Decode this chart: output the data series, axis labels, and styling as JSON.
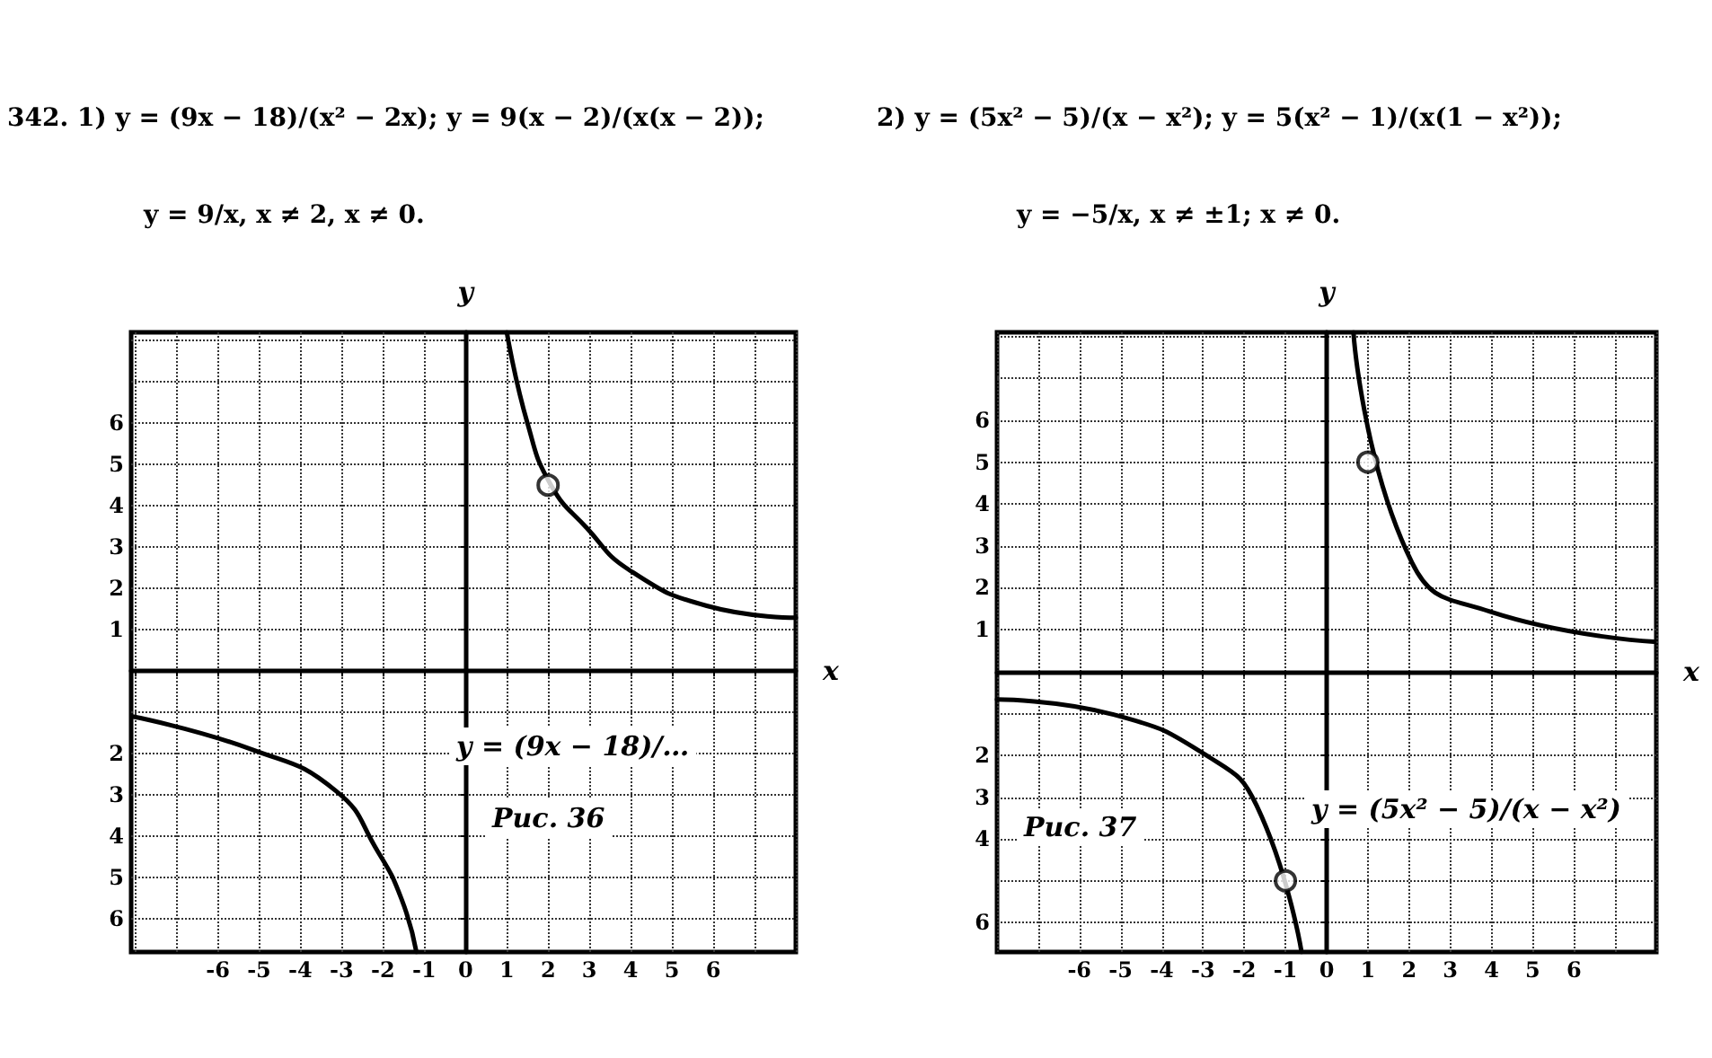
{
  "chart_data": [
    {
      "type": "line",
      "title": "342. 1) y = (9x − 18)/(x² − 2x);  y = 9(x − 2)/(x(x − 2));",
      "subtitle": "y = 9/x,  x ≠ 2, x ≠ 0.",
      "xlabel": "x",
      "ylabel": "y",
      "annotations": [
        "y = (9x − 18)/…",
        "Рис. 36"
      ],
      "xlim": [
        -8.1,
        8
      ],
      "ylim": [
        -6.8,
        8.2
      ],
      "xticks": [
        {
          "value": -8,
          "label": null
        },
        {
          "value": -7,
          "label": null
        },
        -6,
        -5,
        -4,
        -3,
        -2,
        -1,
        0,
        1,
        2,
        3,
        4,
        5,
        6,
        {
          "value": 7,
          "label": null
        },
        {
          "value": 8,
          "label": null
        }
      ],
      "yticks": [
        {
          "value": -6,
          "label": "6"
        },
        {
          "value": -5,
          "label": "5"
        },
        {
          "value": -4,
          "label": "4"
        },
        {
          "value": -3,
          "label": "3"
        },
        {
          "value": -2,
          "label": "2"
        },
        {
          "value": -1,
          "label": null
        },
        {
          "value": 0,
          "label": null
        },
        1,
        2,
        3,
        4,
        5,
        6,
        {
          "value": 7,
          "label": null
        },
        {
          "value": 8,
          "label": null
        }
      ],
      "grid": true,
      "line_style": "solid",
      "series": [
        {
          "color": "#000000",
          "marker": "none",
          "x": [
            1.0,
            1.5,
            2.07,
            2.94,
            3.96,
            5.84,
            8.0
          ],
          "values": [
            8.2,
            6.0,
            4.5,
            3.46,
            2.45,
            1.58,
            1.29
          ]
        },
        {
          "color": "#000000",
          "marker": "none",
          "x": [
            -8.07,
            -5.17,
            -3.14,
            -2.13,
            -1.55,
            -1.19
          ],
          "values": [
            -1.1,
            -1.9,
            -2.9,
            -4.36,
            -5.52,
            -6.8
          ]
        },
        {
          "type": "scatter",
          "color": "#ffffff",
          "marker": "circle",
          "x": [
            2
          ],
          "values": [
            4.5
          ]
        }
      ]
    },
    {
      "type": "line",
      "title": "2) y = (5x² − 5)/(x − x²);  y = 5(x² − 1)/(x(1 − x²));",
      "subtitle": "y = −5/x,  x ≠ ±1; x ≠ 0.",
      "xlabel": "x",
      "ylabel": "y",
      "annotations": [
        "Рис. 37",
        "y = (5x² − 5)/(x − x²)"
      ],
      "xlim": [
        -8,
        8
      ],
      "ylim": [
        -6.7,
        8.1
      ],
      "xticks": [
        {
          "value": -8,
          "label": null
        },
        {
          "value": -7,
          "label": null
        },
        -6,
        -5,
        -4,
        -3,
        -2,
        -1,
        0,
        1,
        2,
        3,
        4,
        5,
        6,
        {
          "value": 7,
          "label": null
        },
        {
          "value": 8,
          "label": null
        }
      ],
      "yticks": [
        {
          "value": -6,
          "label": "6"
        },
        {
          "value": -5,
          "label": null
        },
        {
          "value": -4,
          "label": "4"
        },
        {
          "value": -3,
          "label": "3"
        },
        {
          "value": -2,
          "label": "2"
        },
        {
          "value": -1,
          "label": null
        },
        {
          "value": 0,
          "label": null
        },
        1,
        2,
        3,
        4,
        5,
        6,
        {
          "value": 7,
          "label": null
        },
        {
          "value": 8,
          "label": null
        }
      ],
      "grid": true,
      "line_style": "solid",
      "series": [
        {
          "color": "#000000",
          "marker": "none",
          "x": [
            0.65,
            2.07,
            3.96,
            7.94
          ],
          "values": [
            8.1,
            2.6,
            1.43,
            0.71
          ]
        },
        {
          "color": "#000000",
          "marker": "none",
          "x": [
            -8.0,
            -5.17,
            -2.86,
            -1.7,
            -0.61
          ],
          "values": [
            -0.67,
            -1.03,
            -2.04,
            -3.2,
            -6.7
          ]
        },
        {
          "type": "scatter",
          "color": "#ffffff",
          "marker": "circle",
          "x": [
            1,
            -1
          ],
          "values": [
            5,
            -5
          ]
        }
      ]
    }
  ]
}
